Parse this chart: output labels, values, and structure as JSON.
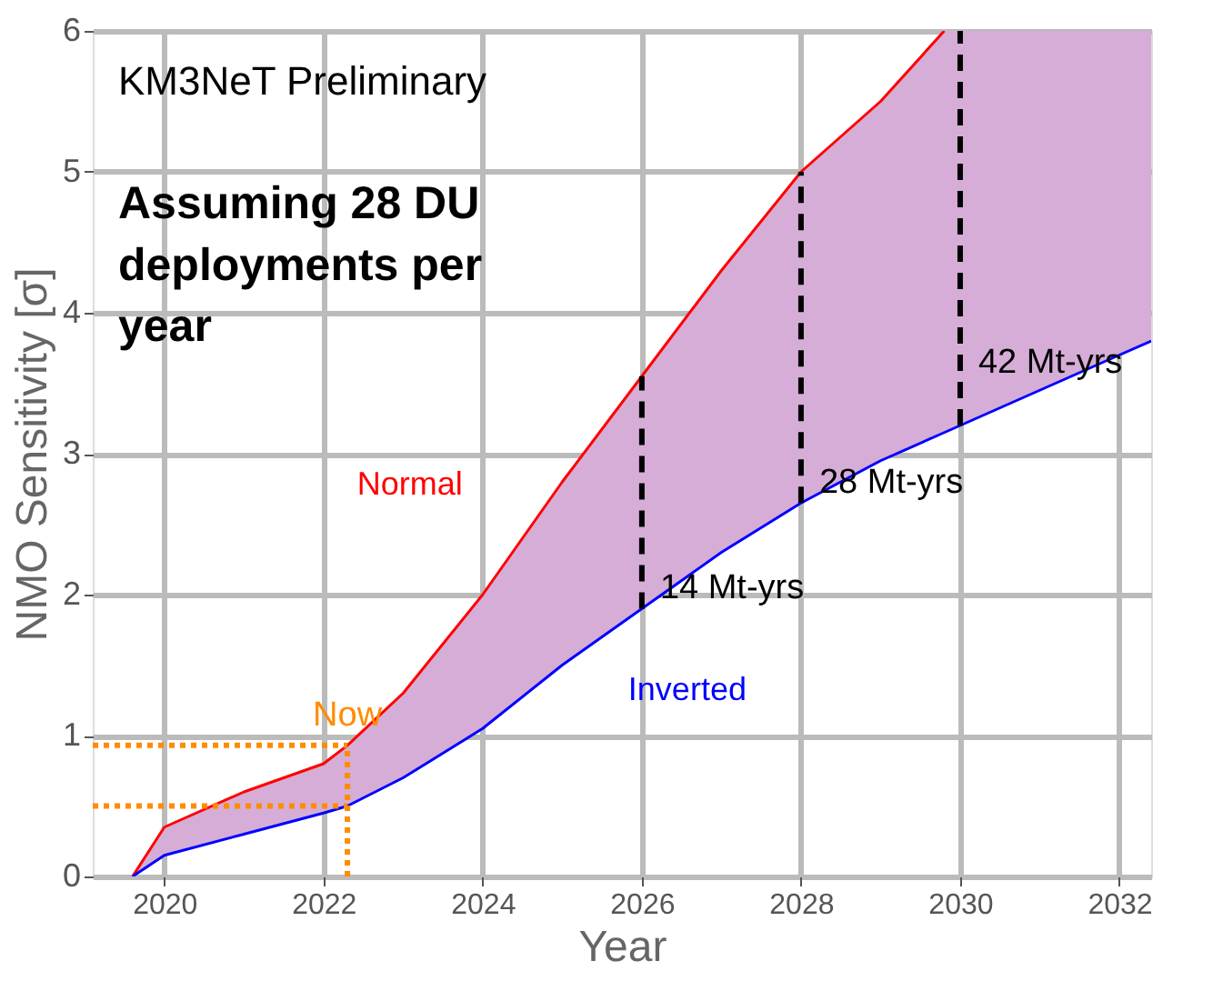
{
  "chart_data": {
    "type": "line",
    "xlabel": "Year",
    "ylabel": "NMO Sensitivity [σ]",
    "xlim": [
      2019.1,
      2032.4
    ],
    "ylim": [
      0,
      6
    ],
    "xticks": [
      2020,
      2022,
      2024,
      2026,
      2028,
      2030,
      2032
    ],
    "yticks": [
      0,
      1,
      2,
      3,
      4,
      5,
      6
    ],
    "grid": true,
    "x": [
      2019.6,
      2020,
      2021,
      2022,
      2022.3,
      2023,
      2024,
      2025,
      2026,
      2027,
      2028,
      2029,
      2029.8,
      2030,
      2031,
      2032,
      2032.4
    ],
    "series": [
      {
        "name": "Normal",
        "color": "#ff0000",
        "values": [
          0,
          0.35,
          0.6,
          0.8,
          0.93,
          1.3,
          2.0,
          2.8,
          3.55,
          4.3,
          5.0,
          5.5,
          6.0,
          null,
          null,
          null,
          null
        ],
        "upper": [
          0,
          0.35,
          0.6,
          0.8,
          0.93,
          1.3,
          2.0,
          2.8,
          3.55,
          4.3,
          5.0,
          5.5,
          6.0,
          6.0,
          6.0,
          6.0,
          6.0
        ],
        "lower": [
          0,
          0.15,
          0.3,
          0.45,
          0.5,
          0.7,
          1.05,
          1.5,
          1.9,
          2.3,
          2.65,
          2.95,
          3.15,
          3.2,
          3.45,
          3.7,
          3.8
        ]
      },
      {
        "name": "Inverted",
        "color": "#0000ff",
        "values": [
          0,
          0.15,
          0.3,
          0.45,
          0.5,
          0.7,
          1.05,
          1.5,
          1.9,
          2.3,
          2.65,
          2.95,
          3.15,
          3.2,
          3.45,
          3.7,
          3.8
        ]
      },
      {
        "color": "#000000",
        "line_style": "dashed",
        "x": [
          2026,
          2026
        ],
        "values": [
          1.9,
          3.55
        ]
      },
      {
        "color": "#000000",
        "line_style": "dashed",
        "x": [
          2028,
          2028
        ],
        "values": [
          2.65,
          5.0
        ]
      },
      {
        "color": "#000000",
        "line_style": "dashed",
        "x": [
          2030,
          2030
        ],
        "values": [
          3.2,
          6.0
        ]
      },
      {
        "color": "#ff8c00",
        "line_style": "dotted",
        "x": [
          2019.1,
          2022.3
        ],
        "values": [
          0.93,
          0.93
        ]
      },
      {
        "color": "#ff8c00",
        "line_style": "dotted",
        "x": [
          2019.1,
          2022.3
        ],
        "values": [
          0.5,
          0.5
        ]
      },
      {
        "color": "#ff8c00",
        "line_style": "dotted",
        "x": [
          2022.3,
          2022.3
        ],
        "values": [
          0,
          0.93
        ]
      }
    ],
    "annotations": [
      "KM3NeT Preliminary",
      "Assuming 28 DU\ndeployments per\nyear",
      {
        "text": "14 Mt-yrs",
        "x": 2026,
        "y": 2.05
      },
      {
        "text": "28 Mt-yrs",
        "x": 2028,
        "y": 2.8
      },
      {
        "text": "42 Mt-yrs",
        "x": 2030,
        "y": 3.65
      },
      {
        "text": "Now",
        "x": 2022.3,
        "y": 0.93
      }
    ]
  }
}
